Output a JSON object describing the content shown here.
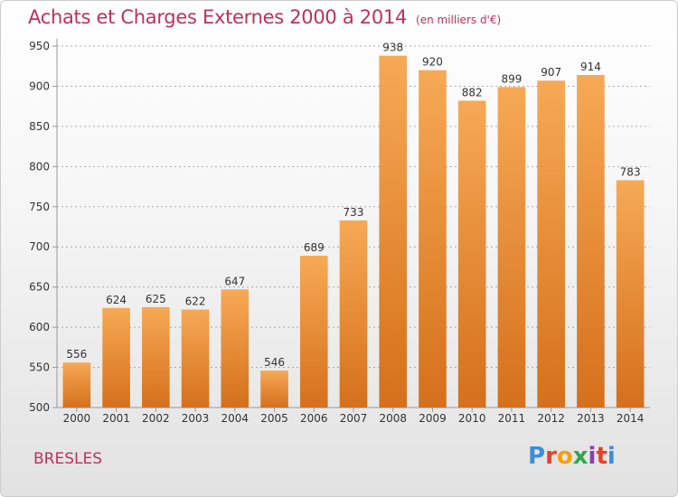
{
  "header": {
    "title": "Achats et Charges Externes 2000 à 2014",
    "subtitle": "(en milliers d'€)"
  },
  "footer": {
    "place": "BRESLES",
    "logo": "Proxiti",
    "logo_colors": [
      "#3a8fd8",
      "#e8402a",
      "#f2a20d",
      "#2fa84f",
      "#8a3fb0",
      "#e8402a",
      "#3a8fd8"
    ]
  },
  "colors": {
    "bar_top": "#f7a955",
    "bar_bottom": "#d5701c",
    "axis": "#999999",
    "grid": "#aaaaaa"
  },
  "chart_data": {
    "type": "bar",
    "title": "Achats et Charges Externes 2000 à 2014",
    "subtitle": "(en milliers d'€)",
    "categories": [
      "2000",
      "2001",
      "2002",
      "2003",
      "2004",
      "2005",
      "2006",
      "2007",
      "2008",
      "2009",
      "2010",
      "2011",
      "2012",
      "2013",
      "2014"
    ],
    "values": [
      556,
      624,
      625,
      622,
      647,
      546,
      689,
      733,
      938,
      920,
      882,
      899,
      907,
      914,
      783
    ],
    "ylim": [
      500,
      950
    ],
    "yticks": [
      500,
      550,
      600,
      650,
      700,
      750,
      800,
      850,
      900,
      950
    ],
    "grid": true,
    "xlabel": "",
    "ylabel": ""
  }
}
